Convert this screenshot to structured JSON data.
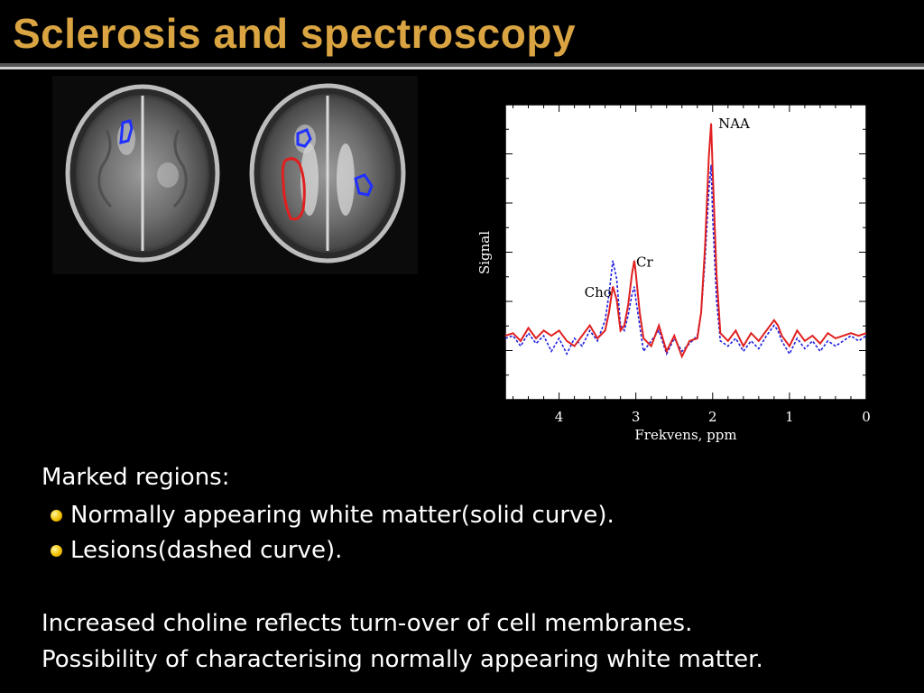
{
  "slide": {
    "title": "Sclerosis and spectroscopy",
    "marked_heading": "Marked regions:",
    "bullets": [
      "Normally appearing white matter(solid curve).",
      "Lesions(dashed curve)."
    ],
    "para1": "Increased choline reflects turn-over of cell membranes.",
    "para2": "Possibility of characterising normally appearing white matter.",
    "colors": {
      "title": "#d9a441",
      "solid_curve": "#e02020",
      "dashed_curve": "#2020e0",
      "bullet": "#f2c200"
    }
  },
  "chart_data": {
    "type": "line",
    "xlabel": "Frekvens, ppm",
    "ylabel": "Signal",
    "xlim": [
      4.7,
      0
    ],
    "x_ticks": [
      4,
      3,
      2,
      1,
      0
    ],
    "x_reversed": true,
    "grid": false,
    "annotations": [
      {
        "text": "NAA",
        "x": 2.02,
        "y": 0.95
      },
      {
        "text": "Cr",
        "x": 3.02,
        "y": 0.42
      },
      {
        "text": "Cho",
        "x": 3.2,
        "y": 0.38
      }
    ],
    "series": [
      {
        "style": "solid",
        "color": "#e02020",
        "x": [
          4.7,
          4.6,
          4.5,
          4.4,
          4.3,
          4.2,
          4.1,
          4.0,
          3.9,
          3.8,
          3.7,
          3.6,
          3.5,
          3.4,
          3.35,
          3.3,
          3.25,
          3.2,
          3.15,
          3.1,
          3.05,
          3.02,
          3.0,
          2.95,
          2.9,
          2.8,
          2.7,
          2.6,
          2.5,
          2.4,
          2.3,
          2.2,
          2.15,
          2.1,
          2.05,
          2.02,
          2.0,
          1.95,
          1.9,
          1.8,
          1.7,
          1.6,
          1.5,
          1.4,
          1.3,
          1.2,
          1.15,
          1.1,
          1.0,
          0.9,
          0.8,
          0.7,
          0.6,
          0.5,
          0.4,
          0.3,
          0.2,
          0.1,
          0.0
        ],
        "y": [
          0.16,
          0.17,
          0.14,
          0.19,
          0.15,
          0.18,
          0.16,
          0.18,
          0.14,
          0.12,
          0.16,
          0.2,
          0.15,
          0.18,
          0.25,
          0.35,
          0.3,
          0.18,
          0.2,
          0.28,
          0.4,
          0.45,
          0.4,
          0.25,
          0.15,
          0.12,
          0.2,
          0.1,
          0.16,
          0.08,
          0.14,
          0.15,
          0.25,
          0.5,
          0.85,
          0.98,
          0.8,
          0.4,
          0.17,
          0.14,
          0.18,
          0.12,
          0.17,
          0.14,
          0.18,
          0.22,
          0.2,
          0.16,
          0.12,
          0.18,
          0.14,
          0.16,
          0.13,
          0.17,
          0.15,
          0.16,
          0.17,
          0.16,
          0.17
        ]
      },
      {
        "style": "dashed",
        "color": "#2020e0",
        "x": [
          4.7,
          4.6,
          4.5,
          4.4,
          4.3,
          4.2,
          4.1,
          4.0,
          3.9,
          3.8,
          3.7,
          3.6,
          3.5,
          3.4,
          3.35,
          3.3,
          3.25,
          3.2,
          3.15,
          3.1,
          3.05,
          3.02,
          3.0,
          2.95,
          2.9,
          2.8,
          2.7,
          2.6,
          2.5,
          2.4,
          2.3,
          2.2,
          2.15,
          2.1,
          2.05,
          2.02,
          2.0,
          1.95,
          1.9,
          1.8,
          1.7,
          1.6,
          1.5,
          1.4,
          1.3,
          1.2,
          1.15,
          1.1,
          1.0,
          0.9,
          0.8,
          0.7,
          0.6,
          0.5,
          0.4,
          0.3,
          0.2,
          0.1,
          0.0
        ],
        "y": [
          0.15,
          0.16,
          0.12,
          0.17,
          0.13,
          0.16,
          0.1,
          0.15,
          0.09,
          0.15,
          0.12,
          0.18,
          0.14,
          0.22,
          0.32,
          0.45,
          0.38,
          0.2,
          0.18,
          0.24,
          0.32,
          0.35,
          0.3,
          0.2,
          0.1,
          0.14,
          0.18,
          0.09,
          0.15,
          0.1,
          0.13,
          0.16,
          0.25,
          0.45,
          0.72,
          0.82,
          0.62,
          0.3,
          0.14,
          0.12,
          0.15,
          0.1,
          0.14,
          0.11,
          0.16,
          0.2,
          0.18,
          0.14,
          0.09,
          0.15,
          0.11,
          0.14,
          0.1,
          0.14,
          0.12,
          0.14,
          0.16,
          0.14,
          0.16
        ]
      }
    ]
  }
}
